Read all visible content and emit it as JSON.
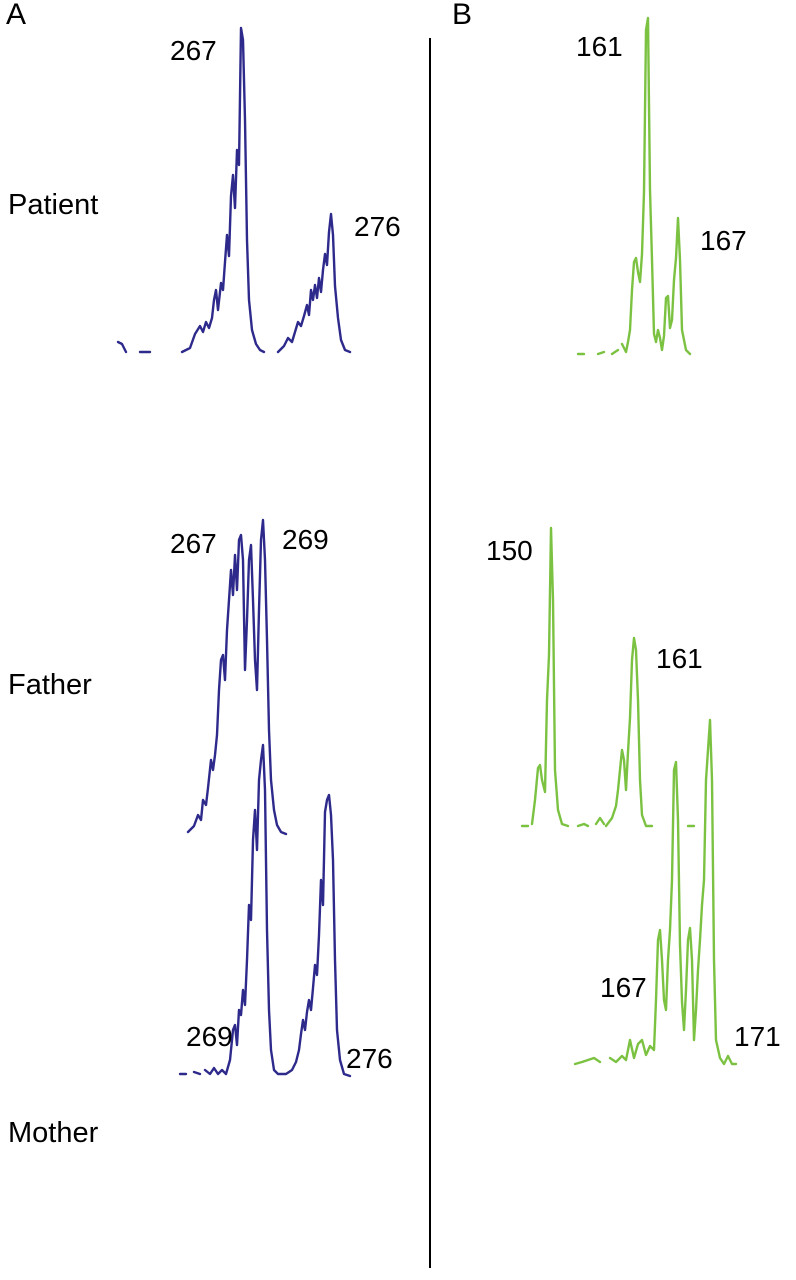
{
  "panels": [
    {
      "id": "A",
      "letter": "A",
      "trace_color": "#2e2a8c"
    },
    {
      "id": "B",
      "letter": "B",
      "trace_color": "#7cc242"
    }
  ],
  "rows": [
    {
      "id": "patient",
      "label": "Patient"
    },
    {
      "id": "father",
      "label": "Father"
    },
    {
      "id": "mother",
      "label": "Mother"
    }
  ],
  "peak_labels": {
    "A": {
      "patient": [
        "267",
        "276"
      ],
      "father": [
        "267",
        "269"
      ],
      "mother": [
        "269",
        "276"
      ]
    },
    "B": {
      "patient": [
        "161",
        "167"
      ],
      "father": [
        "150",
        "161"
      ],
      "mother": [
        "167",
        "171"
      ]
    }
  }
}
